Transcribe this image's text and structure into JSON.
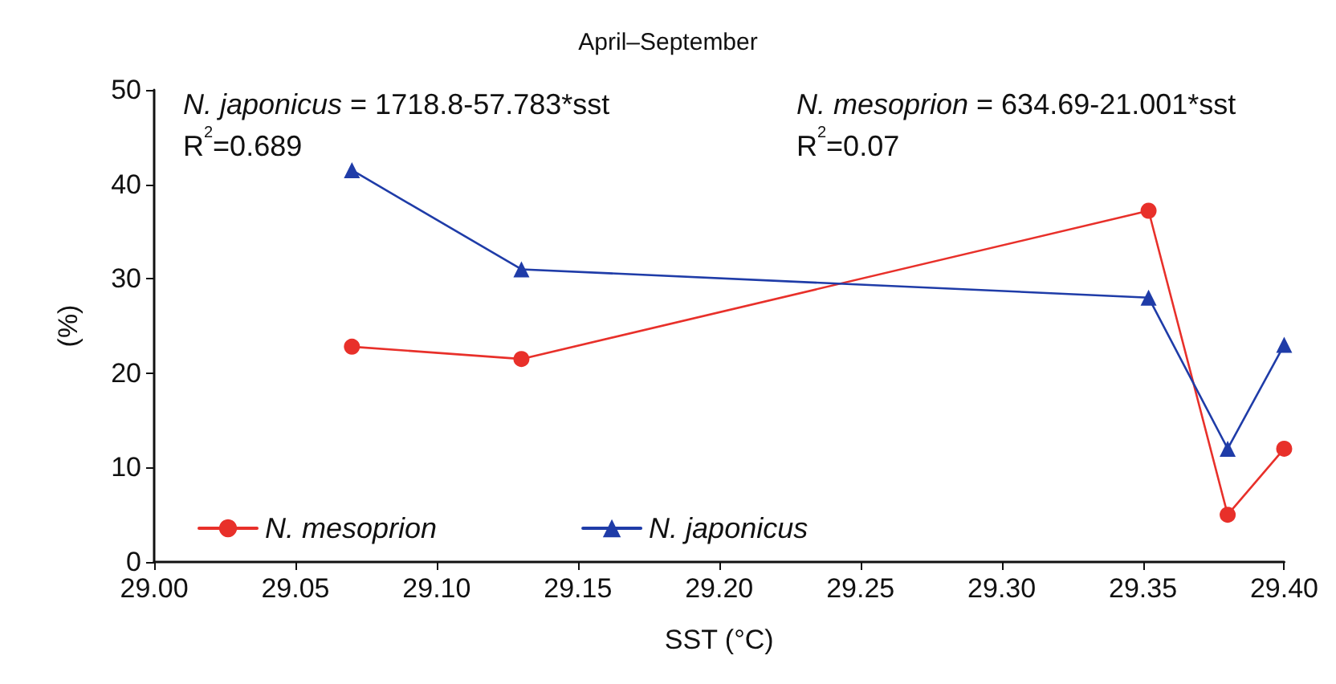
{
  "chart_data": {
    "type": "line",
    "title": "April–September",
    "xlabel": "SST (°C)",
    "ylabel": "(%)",
    "x": [
      29.07,
      29.13,
      29.352,
      29.38,
      29.4
    ],
    "series": [
      {
        "name": "N. mesoprion",
        "color": "#e8302a",
        "marker": "circle",
        "values": [
          22.8,
          21.5,
          37.2,
          5.0,
          12.0
        ]
      },
      {
        "name": "N. japonicus",
        "color": "#1f3ca8",
        "marker": "triangle",
        "values": [
          41.5,
          31.0,
          28.0,
          12.0,
          23.0
        ]
      }
    ],
    "xlim": [
      29.0,
      29.4
    ],
    "xticks": [
      {
        "value": 29.0,
        "label": "29.00"
      },
      {
        "value": 29.05,
        "label": "29.05"
      },
      {
        "value": 29.1,
        "label": "29.10"
      },
      {
        "value": 29.15,
        "label": "29.15"
      },
      {
        "value": 29.2,
        "label": "29.20"
      },
      {
        "value": 29.25,
        "label": "29.25"
      },
      {
        "value": 29.3,
        "label": "29.30"
      },
      {
        "value": 29.35,
        "label": "29.35"
      },
      {
        "value": 29.4,
        "label": "29.40"
      }
    ],
    "ylim": [
      0,
      50
    ],
    "yticks": [
      0,
      10,
      20,
      30,
      40,
      50
    ],
    "annotations": [
      "N. japonicus = 1718.8-57.783*sst\nR$^{2}$=0.689",
      "N. mesoprion = 634.69-21.001*sst\nR$^{2}$=0.07"
    ],
    "legend": "bottom left",
    "grid": false
  }
}
